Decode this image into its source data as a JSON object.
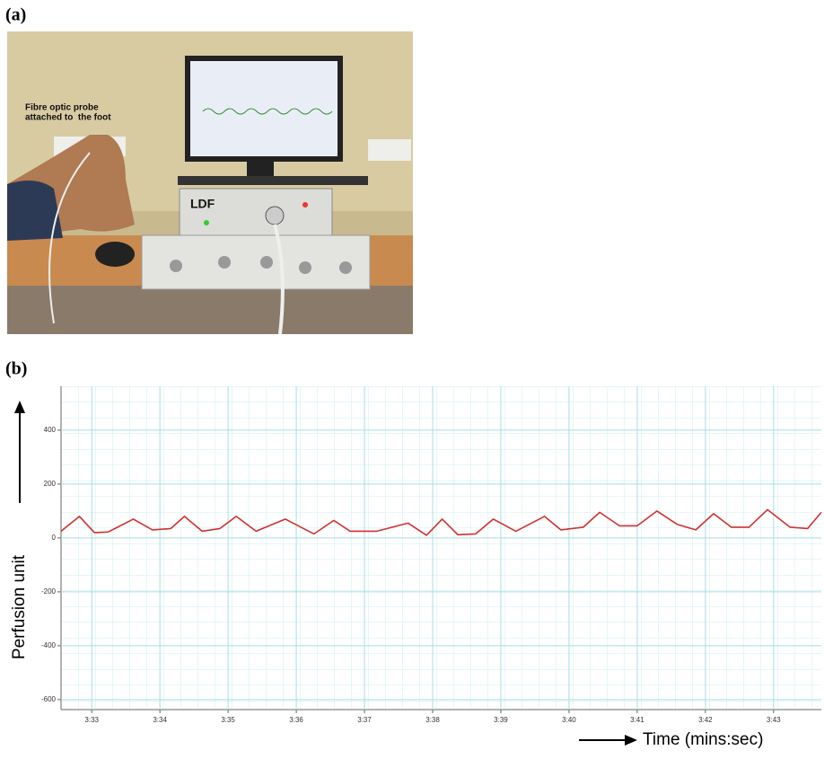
{
  "panel_a": {
    "label": "(a)",
    "probe_note": [
      "Fibre optic probe",
      "attached to  the foot"
    ],
    "device_label": "LDF"
  },
  "chart_data": {
    "type": "line",
    "panel_label": "(b)",
    "x_label": "Time (mins:sec)",
    "y_label": "Perfusion unit",
    "xlim": [
      212.55,
      223.7
    ],
    "ylim": [
      -637,
      563
    ],
    "xticks": [
      {
        "value": 213,
        "label": "3:33"
      },
      {
        "value": 214,
        "label": "3:34"
      },
      {
        "value": 215,
        "label": "3:35"
      },
      {
        "value": 216,
        "label": "3:36"
      },
      {
        "value": 217,
        "label": "3:37"
      },
      {
        "value": 218,
        "label": "3:38"
      },
      {
        "value": 219,
        "label": "3:39"
      },
      {
        "value": 220,
        "label": "3:40"
      },
      {
        "value": 221,
        "label": "3:41"
      },
      {
        "value": 222,
        "label": "3:42"
      },
      {
        "value": 223,
        "label": "3:43"
      }
    ],
    "yticks": [
      400,
      200,
      0,
      -200,
      -400,
      -600
    ],
    "grid": true,
    "series": [
      {
        "color": "#d03030",
        "x": [
          212.55,
          212.82,
          213.04,
          213.24,
          213.61,
          213.89,
          214.16,
          214.36,
          214.62,
          214.88,
          215.12,
          215.41,
          215.84,
          216.26,
          216.55,
          216.79,
          217.18,
          217.64,
          217.91,
          218.14,
          218.37,
          218.63,
          218.89,
          219.22,
          219.64,
          219.88,
          220.21,
          220.45,
          220.74,
          221.0,
          221.29,
          221.59,
          221.86,
          222.12,
          222.38,
          222.64,
          222.91,
          223.24,
          223.5,
          223.7
        ],
        "values": [
          25,
          80,
          20,
          22,
          70,
          30,
          35,
          80,
          25,
          35,
          80,
          25,
          70,
          15,
          65,
          25,
          25,
          55,
          10,
          70,
          12,
          15,
          70,
          25,
          80,
          30,
          40,
          95,
          45,
          45,
          100,
          50,
          30,
          90,
          40,
          40,
          105,
          40,
          35,
          95
        ]
      }
    ]
  }
}
